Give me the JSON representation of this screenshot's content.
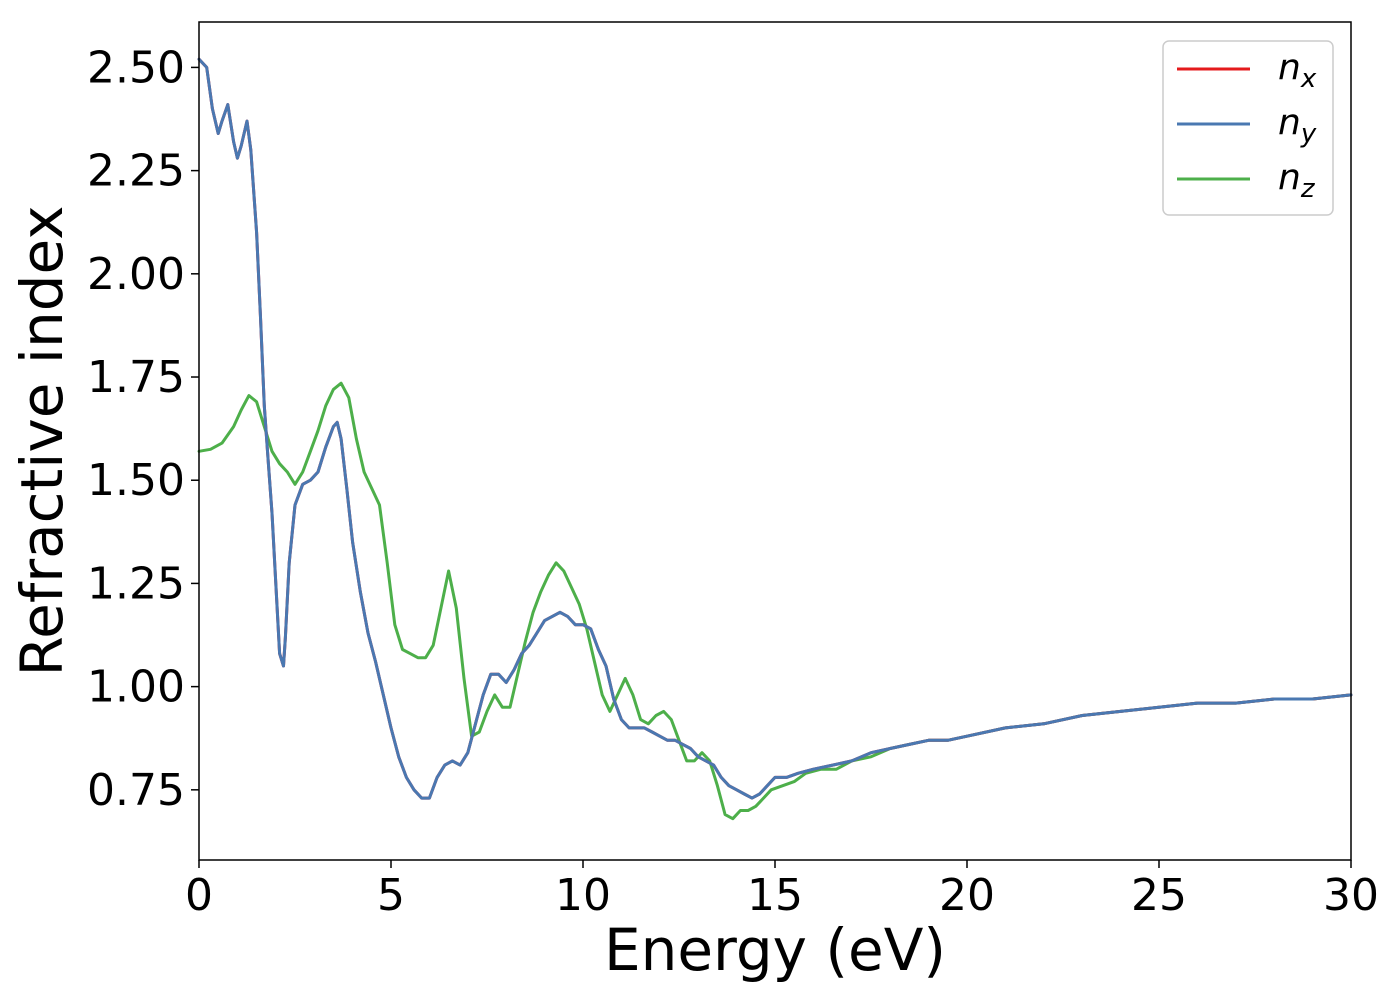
{
  "chart_data": {
    "type": "line",
    "title": "",
    "xlabel": "Energy (eV)",
    "ylabel": "Refractive index",
    "xlim": [
      0,
      30
    ],
    "ylim": [
      0.58,
      2.61
    ],
    "xticks": [
      0,
      5,
      10,
      15,
      20,
      25,
      30
    ],
    "xtick_labels": [
      "0",
      "5",
      "10",
      "15",
      "20",
      "25",
      "30"
    ],
    "yticks": [
      0.75,
      1.0,
      1.25,
      1.5,
      1.75,
      2.0,
      2.25,
      2.5
    ],
    "ytick_labels": [
      "0.75",
      "1.00",
      "1.25",
      "1.50",
      "1.75",
      "2.00",
      "2.25",
      "2.50"
    ],
    "grid": false,
    "legend_position": "top-right",
    "series": [
      {
        "name": "n",
        "subscript": "x",
        "color": "#e41a1c",
        "x": [
          0,
          0.2,
          0.35,
          0.5,
          0.6,
          0.75,
          0.9,
          1.0,
          1.1,
          1.25,
          1.35,
          1.5,
          1.6,
          1.7,
          1.8,
          1.9,
          2.0,
          2.1,
          2.2,
          2.25,
          2.35,
          2.5,
          2.7,
          2.9,
          3.1,
          3.3,
          3.5,
          3.6,
          3.7,
          3.85,
          4.0,
          4.2,
          4.4,
          4.6,
          4.8,
          5.0,
          5.2,
          5.4,
          5.6,
          5.8,
          6.0,
          6.2,
          6.4,
          6.6,
          6.8,
          7.0,
          7.2,
          7.4,
          7.6,
          7.8,
          8.0,
          8.2,
          8.4,
          8.6,
          8.8,
          9.0,
          9.2,
          9.4,
          9.6,
          9.8,
          10.0,
          10.2,
          10.4,
          10.6,
          10.8,
          11.0,
          11.2,
          11.4,
          11.6,
          11.8,
          12.0,
          12.2,
          12.4,
          12.6,
          12.8,
          13.0,
          13.2,
          13.4,
          13.6,
          13.8,
          14.0,
          14.2,
          14.4,
          14.6,
          14.8,
          15.0,
          15.3,
          15.6,
          16.0,
          16.5,
          17.0,
          17.5,
          18.0,
          18.5,
          19.0,
          19.5,
          20.0,
          21.0,
          22.0,
          23.0,
          24.0,
          25.0,
          26.0,
          27.0,
          28.0,
          29.0,
          30.0
        ],
        "y": [
          2.52,
          2.5,
          2.4,
          2.34,
          2.37,
          2.41,
          2.32,
          2.28,
          2.31,
          2.37,
          2.3,
          2.1,
          1.9,
          1.68,
          1.55,
          1.42,
          1.25,
          1.08,
          1.05,
          1.12,
          1.3,
          1.44,
          1.49,
          1.5,
          1.52,
          1.58,
          1.63,
          1.64,
          1.6,
          1.48,
          1.35,
          1.23,
          1.13,
          1.06,
          0.98,
          0.9,
          0.83,
          0.78,
          0.75,
          0.73,
          0.73,
          0.78,
          0.81,
          0.82,
          0.81,
          0.84,
          0.91,
          0.98,
          1.03,
          1.03,
          1.01,
          1.04,
          1.08,
          1.1,
          1.13,
          1.16,
          1.17,
          1.18,
          1.17,
          1.15,
          1.15,
          1.14,
          1.09,
          1.05,
          0.97,
          0.92,
          0.9,
          0.9,
          0.9,
          0.89,
          0.88,
          0.87,
          0.87,
          0.86,
          0.85,
          0.83,
          0.82,
          0.81,
          0.78,
          0.76,
          0.75,
          0.74,
          0.73,
          0.74,
          0.76,
          0.78,
          0.78,
          0.79,
          0.8,
          0.81,
          0.82,
          0.84,
          0.85,
          0.86,
          0.87,
          0.87,
          0.88,
          0.9,
          0.91,
          0.93,
          0.94,
          0.95,
          0.96,
          0.96,
          0.97,
          0.97,
          0.98
        ]
      },
      {
        "name": "n",
        "subscript": "y",
        "color": "#4a78b1",
        "x": [
          0,
          0.2,
          0.35,
          0.5,
          0.6,
          0.75,
          0.9,
          1.0,
          1.1,
          1.25,
          1.35,
          1.5,
          1.6,
          1.7,
          1.8,
          1.9,
          2.0,
          2.1,
          2.2,
          2.25,
          2.35,
          2.5,
          2.7,
          2.9,
          3.1,
          3.3,
          3.5,
          3.6,
          3.7,
          3.85,
          4.0,
          4.2,
          4.4,
          4.6,
          4.8,
          5.0,
          5.2,
          5.4,
          5.6,
          5.8,
          6.0,
          6.2,
          6.4,
          6.6,
          6.8,
          7.0,
          7.2,
          7.4,
          7.6,
          7.8,
          8.0,
          8.2,
          8.4,
          8.6,
          8.8,
          9.0,
          9.2,
          9.4,
          9.6,
          9.8,
          10.0,
          10.2,
          10.4,
          10.6,
          10.8,
          11.0,
          11.2,
          11.4,
          11.6,
          11.8,
          12.0,
          12.2,
          12.4,
          12.6,
          12.8,
          13.0,
          13.2,
          13.4,
          13.6,
          13.8,
          14.0,
          14.2,
          14.4,
          14.6,
          14.8,
          15.0,
          15.3,
          15.6,
          16.0,
          16.5,
          17.0,
          17.5,
          18.0,
          18.5,
          19.0,
          19.5,
          20.0,
          21.0,
          22.0,
          23.0,
          24.0,
          25.0,
          26.0,
          27.0,
          28.0,
          29.0,
          30.0
        ],
        "y": [
          2.52,
          2.5,
          2.4,
          2.34,
          2.37,
          2.41,
          2.32,
          2.28,
          2.31,
          2.37,
          2.3,
          2.1,
          1.9,
          1.68,
          1.55,
          1.42,
          1.25,
          1.08,
          1.05,
          1.12,
          1.3,
          1.44,
          1.49,
          1.5,
          1.52,
          1.58,
          1.63,
          1.64,
          1.6,
          1.48,
          1.35,
          1.23,
          1.13,
          1.06,
          0.98,
          0.9,
          0.83,
          0.78,
          0.75,
          0.73,
          0.73,
          0.78,
          0.81,
          0.82,
          0.81,
          0.84,
          0.91,
          0.98,
          1.03,
          1.03,
          1.01,
          1.04,
          1.08,
          1.1,
          1.13,
          1.16,
          1.17,
          1.18,
          1.17,
          1.15,
          1.15,
          1.14,
          1.09,
          1.05,
          0.97,
          0.92,
          0.9,
          0.9,
          0.9,
          0.89,
          0.88,
          0.87,
          0.87,
          0.86,
          0.85,
          0.83,
          0.82,
          0.81,
          0.78,
          0.76,
          0.75,
          0.74,
          0.73,
          0.74,
          0.76,
          0.78,
          0.78,
          0.79,
          0.8,
          0.81,
          0.82,
          0.84,
          0.85,
          0.86,
          0.87,
          0.87,
          0.88,
          0.9,
          0.91,
          0.93,
          0.94,
          0.95,
          0.96,
          0.96,
          0.97,
          0.97,
          0.98
        ]
      },
      {
        "name": "n",
        "subscript": "z",
        "color": "#4daf4a",
        "x": [
          0,
          0.3,
          0.6,
          0.9,
          1.1,
          1.3,
          1.5,
          1.7,
          1.9,
          2.1,
          2.3,
          2.5,
          2.7,
          2.9,
          3.1,
          3.3,
          3.5,
          3.7,
          3.9,
          4.1,
          4.3,
          4.5,
          4.7,
          4.9,
          5.1,
          5.3,
          5.5,
          5.7,
          5.9,
          6.1,
          6.3,
          6.5,
          6.7,
          6.9,
          7.1,
          7.3,
          7.5,
          7.7,
          7.9,
          8.1,
          8.3,
          8.5,
          8.7,
          8.9,
          9.1,
          9.3,
          9.5,
          9.7,
          9.9,
          10.1,
          10.3,
          10.5,
          10.7,
          10.9,
          11.1,
          11.3,
          11.5,
          11.7,
          11.9,
          12.1,
          12.3,
          12.5,
          12.7,
          12.9,
          13.1,
          13.3,
          13.5,
          13.7,
          13.9,
          14.1,
          14.3,
          14.5,
          14.7,
          14.9,
          15.2,
          15.5,
          15.8,
          16.2,
          16.6,
          17.0,
          17.5,
          18.0,
          18.5,
          19.0,
          19.5,
          20.0,
          21.0,
          22.0,
          23.0,
          24.0,
          25.0,
          26.0,
          27.0,
          28.0,
          29.0,
          30.0
        ],
        "y": [
          1.57,
          1.575,
          1.59,
          1.63,
          1.67,
          1.705,
          1.69,
          1.63,
          1.57,
          1.54,
          1.52,
          1.49,
          1.52,
          1.57,
          1.62,
          1.68,
          1.72,
          1.735,
          1.7,
          1.6,
          1.52,
          1.48,
          1.44,
          1.3,
          1.15,
          1.09,
          1.08,
          1.07,
          1.07,
          1.1,
          1.19,
          1.28,
          1.19,
          1.02,
          0.88,
          0.89,
          0.94,
          0.98,
          0.95,
          0.95,
          1.03,
          1.11,
          1.18,
          1.23,
          1.27,
          1.3,
          1.28,
          1.24,
          1.2,
          1.14,
          1.06,
          0.98,
          0.94,
          0.98,
          1.02,
          0.98,
          0.92,
          0.91,
          0.93,
          0.94,
          0.92,
          0.87,
          0.82,
          0.82,
          0.84,
          0.82,
          0.76,
          0.69,
          0.68,
          0.7,
          0.7,
          0.71,
          0.73,
          0.75,
          0.76,
          0.77,
          0.79,
          0.8,
          0.8,
          0.82,
          0.83,
          0.85,
          0.86,
          0.87,
          0.87,
          0.88,
          0.9,
          0.91,
          0.93,
          0.94,
          0.95,
          0.96,
          0.96,
          0.97,
          0.97,
          0.98
        ]
      }
    ]
  }
}
